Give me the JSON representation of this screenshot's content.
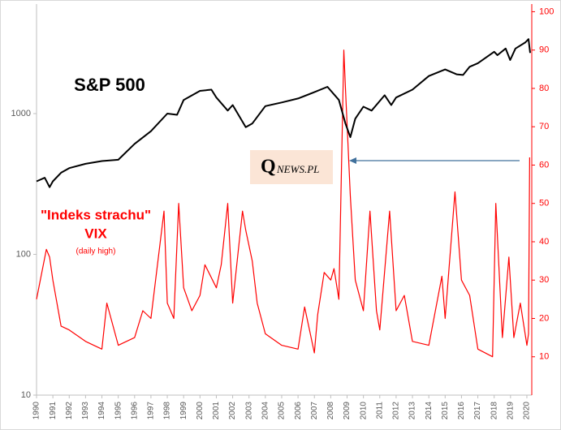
{
  "chart_data": {
    "type": "line",
    "log_scale": true,
    "xlim": [
      1990,
      2020.3
    ],
    "xticks": [
      1990,
      1991,
      1992,
      1993,
      1994,
      1995,
      1996,
      1997,
      1998,
      1999,
      2000,
      2001,
      2002,
      2003,
      2004,
      2005,
      2006,
      2007,
      2008,
      2009,
      2010,
      2011,
      2012,
      2013,
      2014,
      2015,
      2016,
      2017,
      2018,
      2019,
      2020
    ],
    "ylim": [
      10,
      6000
    ],
    "yticks": [
      10,
      100,
      1000
    ],
    "y2lim": [
      0,
      102
    ],
    "y2ticks": [
      10,
      20,
      30,
      40,
      50,
      60,
      70,
      80,
      90,
      100
    ],
    "y2_color": "#ff0000",
    "vix_title": "\"Indeks strachu\"",
    "vix_note": "(daily high)",
    "logo_q": "Q",
    "logo_rest": "NEWS.PL",
    "series": [
      {
        "name": "S&P 500",
        "color": "#000000",
        "x": [
          1990,
          1990.5,
          1990.8,
          1991,
          1991.5,
          1992,
          1993,
          1994,
          1995,
          1996,
          1997,
          1998,
          1998.6,
          1999,
          2000,
          2000.7,
          2001,
          2001.7,
          2002,
          2002.8,
          2003.2,
          2004,
          2005,
          2006,
          2007,
          2007.8,
          2008.5,
          2008.9,
          2009.2,
          2009.5,
          2010,
          2010.5,
          2011.3,
          2011.7,
          2012,
          2013,
          2014,
          2015,
          2015.7,
          2016.1,
          2016.5,
          2017,
          2018,
          2018.2,
          2018.7,
          2018.98,
          2019.3,
          2019.9,
          2020.1,
          2020.2
        ],
        "values": [
          330,
          350,
          300,
          330,
          380,
          410,
          440,
          460,
          470,
          610,
          750,
          1000,
          980,
          1250,
          1450,
          1480,
          1300,
          1050,
          1150,
          800,
          850,
          1130,
          1200,
          1280,
          1420,
          1550,
          1250,
          850,
          680,
          920,
          1120,
          1050,
          1350,
          1150,
          1300,
          1480,
          1850,
          2060,
          1900,
          1880,
          2150,
          2280,
          2750,
          2600,
          2900,
          2400,
          2900,
          3200,
          3380,
          2700
        ]
      },
      {
        "name": "VIX",
        "color": "#ff0000",
        "axis": "y2",
        "x": [
          1990,
          1990.6,
          1990.8,
          1991,
          1991.5,
          1992,
          1993,
          1994,
          1994.3,
          1995,
          1996,
          1996.5,
          1997,
          1997.8,
          1998,
          1998.4,
          1998.7,
          1999,
          1999.5,
          2000,
          2000.3,
          2001,
          2001.3,
          2001.7,
          2002,
          2002.6,
          2002.8,
          2003.2,
          2003.5,
          2004,
          2005,
          2006,
          2006.4,
          2007,
          2007.2,
          2007.6,
          2008,
          2008.2,
          2008.5,
          2008.8,
          2008.9,
          2009.2,
          2009.5,
          2010,
          2010.4,
          2010.8,
          2011,
          2011.6,
          2012,
          2012.5,
          2013,
          2014,
          2014.8,
          2015,
          2015.6,
          2016,
          2016.5,
          2017,
          2017.9,
          2018.1,
          2018.5,
          2018.9,
          2019.2,
          2019.6,
          2020,
          2020.1,
          2020.17
        ],
        "values": [
          25,
          38,
          36,
          30,
          18,
          17,
          14,
          12,
          24,
          13,
          15,
          22,
          20,
          48,
          24,
          20,
          50,
          28,
          22,
          26,
          34,
          28,
          34,
          50,
          24,
          48,
          43,
          35,
          24,
          16,
          13,
          12,
          23,
          11,
          21,
          32,
          30,
          33,
          25,
          90,
          80,
          52,
          30,
          22,
          48,
          22,
          17,
          48,
          22,
          26,
          14,
          13,
          31,
          20,
          53,
          30,
          26,
          12,
          10,
          50,
          15,
          36,
          15,
          24,
          13,
          16,
          62
        ]
      }
    ]
  }
}
